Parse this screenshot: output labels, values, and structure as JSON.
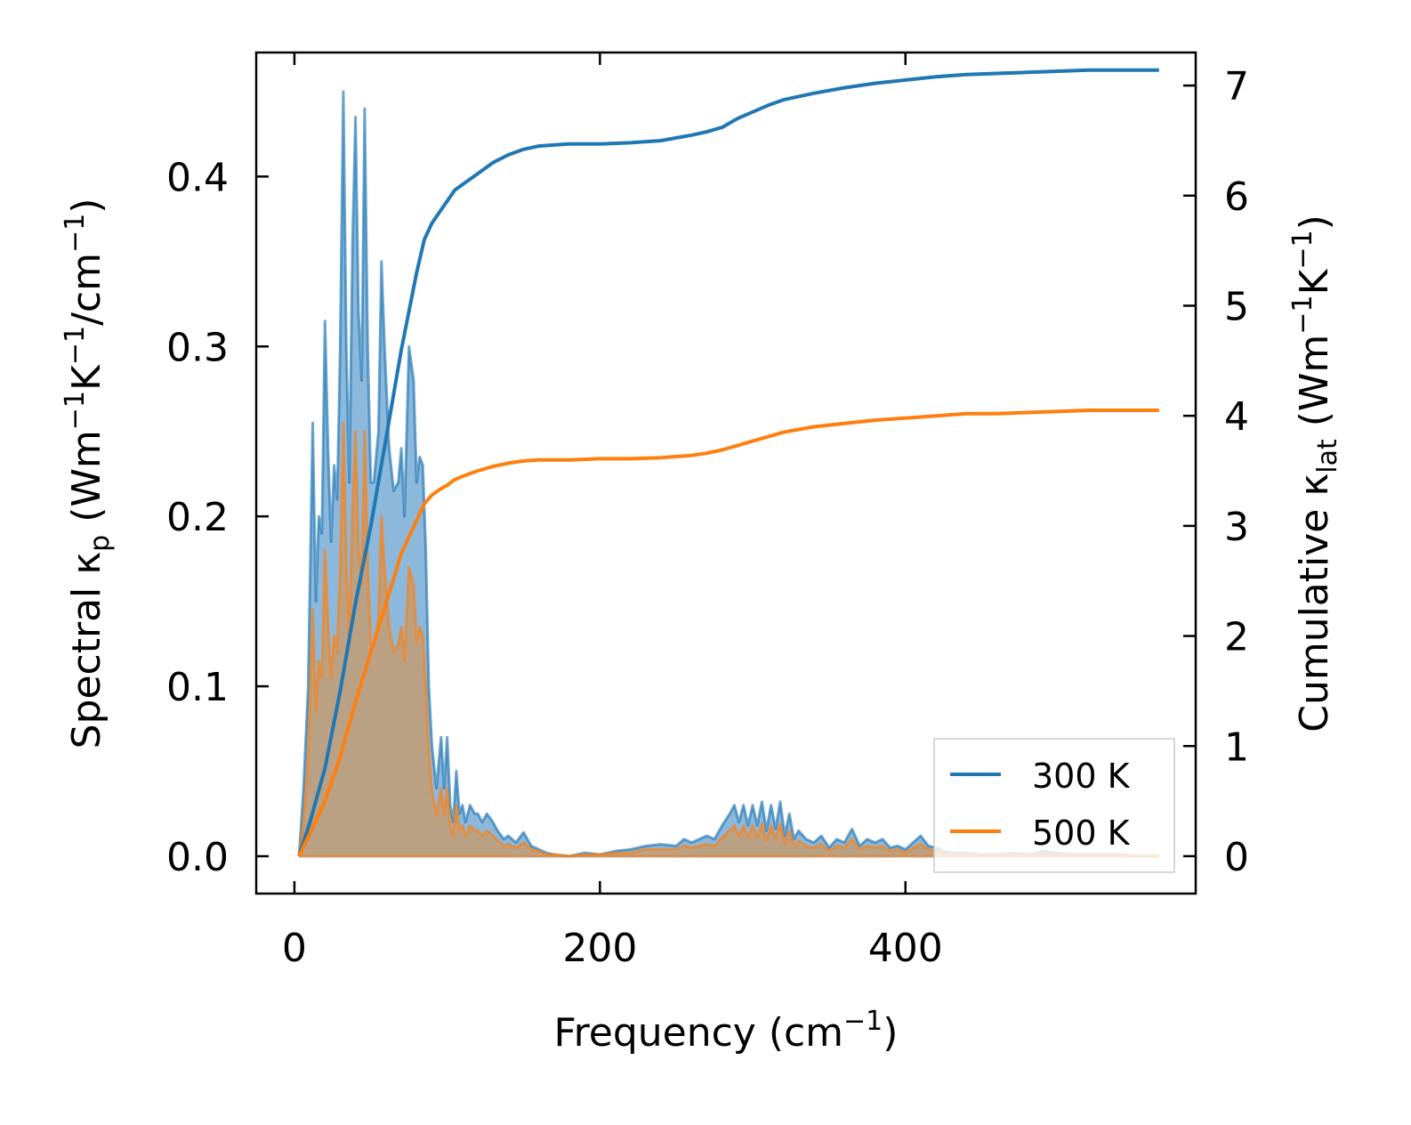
{
  "chart_data": {
    "type": "area",
    "title": "",
    "xlabel": {
      "main": "Frequency (cm",
      "sup": "−1",
      "tail": ")"
    },
    "ylabel_left": {
      "a": "Spectral κ",
      "sub": "p",
      "b": " (Wm",
      "sup1": "−1",
      "c": "K",
      "sup2": "−1",
      "d": "/cm",
      "sup3": "−1",
      "e": ")"
    },
    "ylabel_right": {
      "a": "Cumulative κ",
      "sub": "lat",
      "b": " (Wm",
      "sup1": "−1",
      "c": "K",
      "sup2": "−1",
      "d": ")"
    },
    "xlim": [
      -25,
      590
    ],
    "ylim_left": [
      -0.022,
      0.473
    ],
    "ylim_right": [
      -0.34,
      7.3
    ],
    "xticks": [
      0,
      200,
      400
    ],
    "xtick_labels": [
      "0",
      "200",
      "400"
    ],
    "yticks_left": [
      0.0,
      0.1,
      0.2,
      0.3,
      0.4
    ],
    "ytick_labels_left": [
      "0.0",
      "0.1",
      "0.2",
      "0.3",
      "0.4"
    ],
    "yticks_right": [
      0,
      1,
      2,
      3,
      4,
      5,
      6,
      7
    ],
    "ytick_labels_right": [
      "0",
      "1",
      "2",
      "3",
      "4",
      "5",
      "6",
      "7"
    ],
    "legend": {
      "placement": "lower-right",
      "entries": [
        "300 K",
        "500 K"
      ]
    },
    "colors": {
      "300K": "#1f77b4",
      "500K": "#ff7f0e",
      "fill_300K": "#8cb8db",
      "fill_500K": "#c29c74"
    },
    "series": [
      {
        "name": "300 K",
        "spectral": {
          "x": [
            3,
            6,
            9,
            12,
            14,
            16,
            18,
            20,
            22,
            24,
            26,
            28,
            30,
            32,
            34,
            36,
            38,
            40,
            42,
            44,
            46,
            48,
            50,
            52,
            55,
            57,
            59,
            62,
            65,
            68,
            70,
            72,
            75,
            78,
            80,
            82,
            84,
            86,
            88,
            90,
            93,
            96,
            98,
            100,
            102,
            104,
            106,
            108,
            110,
            112,
            115,
            118,
            120,
            123,
            126,
            130,
            133,
            137,
            140,
            145,
            150,
            155,
            160,
            165,
            170,
            180,
            190,
            200,
            210,
            220,
            230,
            240,
            250,
            255,
            260,
            265,
            270,
            275,
            280,
            285,
            288,
            291,
            294,
            297,
            300,
            303,
            306,
            309,
            312,
            315,
            318,
            321,
            324,
            327,
            330,
            335,
            340,
            345,
            350,
            355,
            360,
            365,
            370,
            375,
            380,
            385,
            390,
            395,
            400,
            405,
            410,
            415,
            420,
            425,
            430,
            440,
            450,
            460,
            470,
            480,
            490,
            500,
            510,
            520,
            530,
            540,
            550,
            566
          ],
          "y": [
            0.0,
            0.04,
            0.1,
            0.255,
            0.15,
            0.2,
            0.19,
            0.315,
            0.24,
            0.185,
            0.23,
            0.21,
            0.3,
            0.45,
            0.3,
            0.22,
            0.36,
            0.435,
            0.32,
            0.28,
            0.44,
            0.3,
            0.22,
            0.22,
            0.25,
            0.35,
            0.3,
            0.24,
            0.215,
            0.22,
            0.24,
            0.2,
            0.3,
            0.28,
            0.22,
            0.235,
            0.23,
            0.18,
            0.1,
            0.065,
            0.04,
            0.07,
            0.04,
            0.07,
            0.03,
            0.02,
            0.05,
            0.025,
            0.03,
            0.02,
            0.03,
            0.025,
            0.025,
            0.02,
            0.025,
            0.02,
            0.015,
            0.01,
            0.012,
            0.008,
            0.014,
            0.006,
            0.004,
            0.002,
            0.001,
            0.0,
            0.002,
            0.001,
            0.003,
            0.004,
            0.006,
            0.007,
            0.006,
            0.01,
            0.008,
            0.01,
            0.012,
            0.01,
            0.018,
            0.025,
            0.03,
            0.02,
            0.03,
            0.018,
            0.03,
            0.018,
            0.032,
            0.015,
            0.03,
            0.016,
            0.032,
            0.012,
            0.025,
            0.01,
            0.015,
            0.01,
            0.008,
            0.012,
            0.005,
            0.01,
            0.008,
            0.016,
            0.006,
            0.01,
            0.008,
            0.01,
            0.005,
            0.006,
            0.004,
            0.008,
            0.012,
            0.006,
            0.005,
            0.003,
            0.002,
            0.002,
            0.001,
            0.001,
            0.002,
            0.001,
            0.003,
            0.002,
            0.001,
            0.001,
            0.001,
            0.001,
            0.0,
            0.0
          ]
        },
        "cumulative": {
          "x": [
            3,
            10,
            20,
            30,
            40,
            50,
            60,
            70,
            80,
            85,
            90,
            95,
            100,
            105,
            110,
            120,
            130,
            140,
            150,
            160,
            170,
            180,
            200,
            220,
            240,
            260,
            270,
            280,
            290,
            300,
            310,
            320,
            340,
            360,
            380,
            400,
            420,
            440,
            460,
            480,
            500,
            520,
            540,
            566
          ],
          "y": [
            0.0,
            0.3,
            0.8,
            1.5,
            2.3,
            3.0,
            3.8,
            4.6,
            5.3,
            5.6,
            5.75,
            5.85,
            5.95,
            6.05,
            6.1,
            6.2,
            6.3,
            6.37,
            6.42,
            6.45,
            6.46,
            6.47,
            6.47,
            6.48,
            6.5,
            6.55,
            6.58,
            6.62,
            6.7,
            6.76,
            6.82,
            6.87,
            6.93,
            6.98,
            7.02,
            7.05,
            7.08,
            7.1,
            7.11,
            7.12,
            7.13,
            7.14,
            7.14,
            7.14
          ]
        }
      },
      {
        "name": "500 K",
        "spectral": {
          "x": [
            3,
            6,
            9,
            12,
            14,
            16,
            18,
            20,
            22,
            24,
            26,
            28,
            30,
            32,
            34,
            36,
            38,
            40,
            42,
            44,
            46,
            48,
            50,
            52,
            55,
            57,
            59,
            62,
            65,
            68,
            70,
            72,
            75,
            78,
            80,
            82,
            84,
            86,
            88,
            90,
            93,
            96,
            98,
            100,
            102,
            104,
            106,
            108,
            110,
            112,
            115,
            118,
            120,
            123,
            126,
            130,
            133,
            137,
            140,
            145,
            150,
            155,
            160,
            165,
            170,
            180,
            190,
            200,
            210,
            220,
            230,
            240,
            250,
            255,
            260,
            265,
            270,
            275,
            280,
            285,
            288,
            291,
            294,
            297,
            300,
            303,
            306,
            309,
            312,
            315,
            318,
            321,
            324,
            327,
            330,
            335,
            340,
            345,
            350,
            355,
            360,
            365,
            370,
            375,
            380,
            385,
            390,
            395,
            400,
            405,
            410,
            415,
            420,
            425,
            430,
            440,
            450,
            460,
            470,
            480,
            490,
            500,
            510,
            520,
            530,
            540,
            550,
            566
          ],
          "y": [
            0.0,
            0.02,
            0.06,
            0.145,
            0.085,
            0.115,
            0.105,
            0.18,
            0.135,
            0.105,
            0.13,
            0.12,
            0.17,
            0.255,
            0.17,
            0.125,
            0.205,
            0.25,
            0.18,
            0.16,
            0.25,
            0.17,
            0.125,
            0.125,
            0.14,
            0.2,
            0.17,
            0.135,
            0.12,
            0.125,
            0.135,
            0.115,
            0.17,
            0.16,
            0.125,
            0.135,
            0.13,
            0.1,
            0.06,
            0.038,
            0.024,
            0.04,
            0.024,
            0.04,
            0.018,
            0.012,
            0.03,
            0.015,
            0.018,
            0.012,
            0.018,
            0.015,
            0.015,
            0.012,
            0.015,
            0.012,
            0.009,
            0.006,
            0.007,
            0.005,
            0.008,
            0.004,
            0.003,
            0.001,
            0.001,
            0.0,
            0.001,
            0.001,
            0.002,
            0.002,
            0.004,
            0.004,
            0.004,
            0.006,
            0.005,
            0.006,
            0.007,
            0.006,
            0.011,
            0.015,
            0.018,
            0.012,
            0.018,
            0.011,
            0.018,
            0.011,
            0.019,
            0.009,
            0.018,
            0.01,
            0.019,
            0.007,
            0.015,
            0.006,
            0.009,
            0.006,
            0.005,
            0.007,
            0.003,
            0.006,
            0.005,
            0.01,
            0.004,
            0.006,
            0.005,
            0.006,
            0.003,
            0.004,
            0.002,
            0.005,
            0.007,
            0.004,
            0.003,
            0.002,
            0.001,
            0.001,
            0.001,
            0.001,
            0.001,
            0.001,
            0.002,
            0.001,
            0.001,
            0.001,
            0.001,
            0.001,
            0.0,
            0.0
          ]
        },
        "cumulative": {
          "x": [
            3,
            10,
            20,
            30,
            40,
            50,
            60,
            70,
            80,
            85,
            90,
            95,
            100,
            105,
            110,
            120,
            130,
            140,
            150,
            160,
            170,
            180,
            200,
            220,
            240,
            260,
            270,
            280,
            290,
            300,
            310,
            320,
            340,
            360,
            380,
            400,
            420,
            440,
            460,
            480,
            500,
            520,
            540,
            566
          ],
          "y": [
            0.0,
            0.2,
            0.5,
            0.9,
            1.4,
            1.85,
            2.3,
            2.75,
            3.05,
            3.2,
            3.28,
            3.33,
            3.37,
            3.42,
            3.45,
            3.5,
            3.54,
            3.57,
            3.59,
            3.6,
            3.6,
            3.6,
            3.61,
            3.61,
            3.62,
            3.64,
            3.66,
            3.69,
            3.73,
            3.77,
            3.81,
            3.85,
            3.9,
            3.93,
            3.96,
            3.98,
            4.0,
            4.02,
            4.02,
            4.03,
            4.04,
            4.05,
            4.05,
            4.05
          ]
        }
      }
    ]
  }
}
